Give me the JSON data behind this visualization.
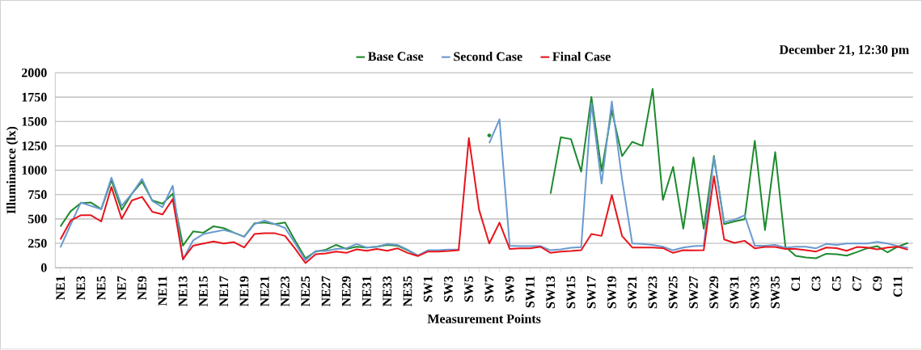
{
  "chart_data": {
    "type": "line",
    "title": "December 21, 12:30 pm",
    "xlabel": "Measurement Points",
    "ylabel": "Illuminance (lx)",
    "categories": [
      "NE1",
      null,
      "NE3",
      null,
      "NE5",
      null,
      "NE7",
      null,
      "NE9",
      null,
      "NE11",
      null,
      "NE13",
      null,
      "NE15",
      null,
      "NE17",
      null,
      "NE19",
      null,
      "NE21",
      null,
      "NE23",
      null,
      "NE25",
      null,
      "NE27",
      null,
      "NE29",
      null,
      "NE31",
      null,
      "NE33",
      null,
      "NE35",
      null,
      "SW1",
      null,
      "SW3",
      null,
      "SW5",
      null,
      "SW7",
      null,
      "SW9",
      null,
      "SW11",
      null,
      "SW13",
      null,
      "SW15",
      null,
      "SW17",
      null,
      "SW19",
      null,
      "SW21",
      null,
      "SW23",
      null,
      "SW25",
      null,
      "SW27",
      null,
      "SW29",
      null,
      "SW31",
      null,
      "SW33",
      null,
      "SW35",
      null,
      "C1",
      null,
      "C3",
      null,
      "C5",
      null,
      "C7",
      null,
      "C9",
      null,
      "C11",
      null
    ],
    "series": [
      {
        "name": "Base Case",
        "color": "#1e8a2e",
        "values": [
          422,
          579,
          662,
          668,
          601,
          897,
          593,
          759,
          883,
          690,
          657,
          759,
          226,
          372,
          359,
          425,
          406,
          359,
          317,
          455,
          463,
          447,
          463,
          276,
          97,
          166,
          185,
          234,
          193,
          215,
          207,
          215,
          234,
          226,
          179,
          124,
          null,
          null,
          null,
          null,
          null,
          null,
          1357,
          null,
          null,
          null,
          null,
          null,
          759,
          1338,
          1319,
          985,
          1752,
          993,
          1614,
          1145,
          1291,
          1250,
          1834,
          695,
          1034,
          400,
          1131,
          400,
          1145,
          447,
          474,
          497,
          1302,
          386,
          1186,
          215,
          121,
          105,
          97,
          143,
          138,
          124,
          160,
          199,
          221,
          157,
          215,
          254
        ]
      },
      {
        "name": "Second Case",
        "color": "#6a9ad0",
        "values": [
          207,
          441,
          668,
          634,
          601,
          924,
          634,
          759,
          910,
          684,
          621,
          841,
          83,
          281,
          345,
          367,
          386,
          359,
          317,
          447,
          483,
          447,
          408,
          248,
          77,
          171,
          171,
          193,
          199,
          243,
          207,
          215,
          243,
          234,
          185,
          124,
          179,
          179,
          185,
          185,
          null,
          null,
          1277,
          1523,
          226,
          221,
          221,
          221,
          179,
          188,
          204,
          210,
          1688,
          863,
          1705,
          910,
          248,
          243,
          234,
          215,
          179,
          207,
          221,
          226,
          1131,
          469,
          491,
          538,
          226,
          226,
          234,
          204,
          215,
          215,
          199,
          243,
          234,
          248,
          248,
          248,
          265,
          248,
          221,
          204
        ]
      },
      {
        "name": "Final Case",
        "color": "#e8141c",
        "values": [
          290,
          483,
          538,
          538,
          474,
          828,
          502,
          690,
          726,
          574,
          546,
          703,
          88,
          226,
          248,
          268,
          248,
          262,
          207,
          345,
          353,
          353,
          326,
          193,
          47,
          138,
          146,
          166,
          152,
          188,
          174,
          193,
          174,
          199,
          152,
          119,
          166,
          166,
          171,
          179,
          1330,
          593,
          248,
          463,
          193,
          199,
          199,
          215,
          152,
          166,
          171,
          179,
          345,
          326,
          745,
          326,
          207,
          207,
          207,
          201,
          152,
          179,
          177,
          179,
          938,
          290,
          254,
          276,
          199,
          212,
          212,
          193,
          193,
          179,
          166,
          207,
          201,
          174,
          212,
          207,
          188,
          207,
          215,
          185
        ]
      }
    ],
    "ylim": [
      0,
      2000
    ],
    "yticks": [
      0,
      250,
      500,
      750,
      1000,
      1250,
      1500,
      1750,
      2000
    ],
    "grid": "y",
    "legend": "top",
    "marker": "none",
    "line_style": "solid"
  }
}
